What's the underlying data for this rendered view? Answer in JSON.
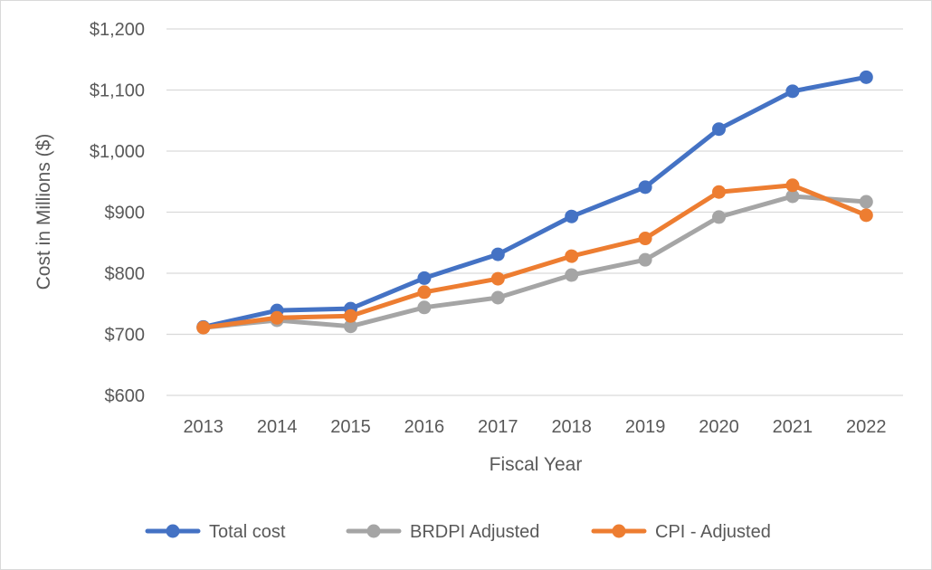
{
  "chart_data": {
    "type": "line",
    "title": "",
    "xlabel": "Fiscal Year",
    "ylabel": "Cost in Millions ($)",
    "ylim": [
      600,
      1200
    ],
    "yticks": [
      600,
      700,
      800,
      900,
      1000,
      1100,
      1200
    ],
    "ytick_labels": [
      "$600",
      "$700",
      "$800",
      "$900",
      "$1,000",
      "$1,100",
      "$1,200"
    ],
    "categories": [
      "2013",
      "2014",
      "2015",
      "2016",
      "2017",
      "2018",
      "2019",
      "2020",
      "2021",
      "2022"
    ],
    "grid": true,
    "legend_position": "bottom",
    "series": [
      {
        "name": "Total cost",
        "color": "#4472c4",
        "values": [
          712,
          739,
          742,
          792,
          831,
          893,
          941,
          1036,
          1098,
          1121
        ]
      },
      {
        "name": "BRDPI Adjusted",
        "color": "#a5a5a5",
        "values": [
          711,
          723,
          713,
          744,
          760,
          797,
          822,
          892,
          926,
          917
        ]
      },
      {
        "name": "CPI - Adjusted",
        "color": "#ed7d31",
        "values": [
          711,
          727,
          730,
          769,
          791,
          828,
          857,
          933,
          944,
          895
        ]
      }
    ]
  }
}
